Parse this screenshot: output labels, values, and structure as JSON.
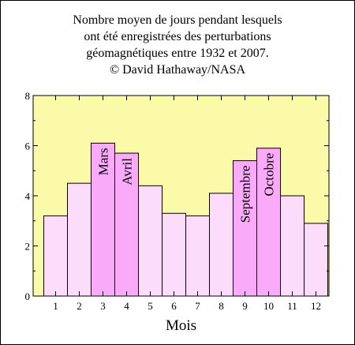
{
  "title_lines": [
    "Nombre moyen de jours pendant lesquels",
    "ont été enregistrées des perturbations",
    "géomagnétiques entre 1932 et 2007.",
    "© David Hathaway/NASA"
  ],
  "colors": {
    "plot_background": "#fafaa8",
    "bar_light": "#fbdcfb",
    "bar_highlight": "#f9aaf9",
    "bar_stroke": "#000000"
  },
  "chart_data": {
    "type": "bar",
    "title": "Nombre moyen de jours pendant lesquels ont été enregistrées des perturbations géomagnétiques entre 1932 et 2007.",
    "xlabel": "Mois",
    "ylabel": "",
    "categories": [
      "1",
      "2",
      "3",
      "4",
      "5",
      "6",
      "7",
      "8",
      "9",
      "10",
      "11",
      "12"
    ],
    "values": [
      3.2,
      4.5,
      6.1,
      5.7,
      4.4,
      3.3,
      3.2,
      4.1,
      5.4,
      5.9,
      4.0,
      2.9
    ],
    "highlighted": [
      false,
      false,
      true,
      true,
      false,
      false,
      false,
      false,
      true,
      true,
      false,
      false
    ],
    "bar_labels": [
      "",
      "",
      "Mars",
      "Avril",
      "",
      "",
      "",
      "",
      "Septembre",
      "Octobre",
      "",
      ""
    ],
    "ylim": [
      0,
      8
    ],
    "yticks": [
      0,
      2,
      4,
      6,
      8
    ],
    "grid": false
  }
}
